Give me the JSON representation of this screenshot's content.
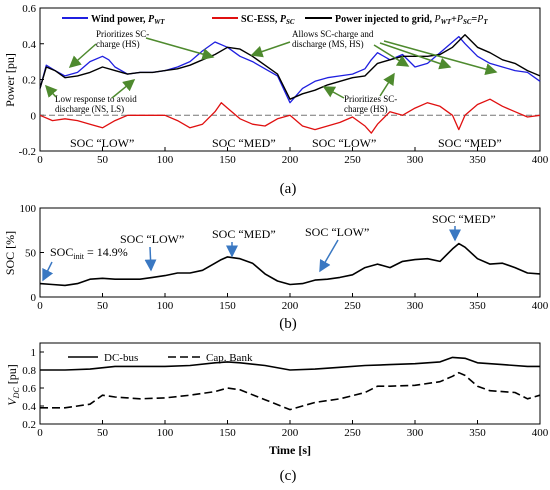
{
  "colors": {
    "wind": "#1f1fe0",
    "sc": "#e01010",
    "grid": "#000000",
    "annot_arrow": "#4e8a2e",
    "soc_arrow": "#3a78c2",
    "zero_line": "#777777"
  },
  "chart_data": [
    {
      "type": "line",
      "caption": "(a)",
      "ylabel": "Power [pu]",
      "xlim": [
        0,
        400
      ],
      "ylim": [
        -0.2,
        0.6
      ],
      "xticks": [
        0,
        50,
        100,
        150,
        200,
        250,
        300,
        350,
        400
      ],
      "yticks": [
        -0.2,
        0,
        0.2,
        0.4,
        0.6
      ],
      "ytick_labels": [
        "-0.2",
        "0",
        "0.2",
        "0.4",
        "0.6"
      ],
      "legend": [
        "Wind power, P_WT",
        "SC-ESS, P_SC",
        "Power injected to grid, P_WT+P_SC=P_T"
      ],
      "series": [
        {
          "name": "Wind power, P_WT",
          "x": [
            0,
            5,
            12,
            20,
            30,
            40,
            50,
            55,
            60,
            70,
            80,
            90,
            100,
            110,
            120,
            130,
            140,
            150,
            160,
            170,
            180,
            190,
            200,
            210,
            220,
            230,
            240,
            250,
            260,
            265,
            270,
            280,
            290,
            300,
            310,
            320,
            330,
            335,
            340,
            350,
            360,
            370,
            380,
            390,
            400
          ],
          "values": [
            0.15,
            0.28,
            0.25,
            0.22,
            0.24,
            0.3,
            0.33,
            0.31,
            0.27,
            0.23,
            0.24,
            0.24,
            0.25,
            0.27,
            0.3,
            0.36,
            0.41,
            0.38,
            0.33,
            0.3,
            0.26,
            0.22,
            0.07,
            0.15,
            0.19,
            0.21,
            0.22,
            0.23,
            0.26,
            0.31,
            0.35,
            0.31,
            0.34,
            0.27,
            0.29,
            0.35,
            0.41,
            0.44,
            0.4,
            0.33,
            0.29,
            0.27,
            0.25,
            0.24,
            0.19
          ]
        },
        {
          "name": "SC-ESS, P_SC",
          "x": [
            0,
            10,
            20,
            30,
            40,
            50,
            60,
            70,
            80,
            90,
            100,
            110,
            120,
            130,
            140,
            145,
            150,
            160,
            170,
            180,
            190,
            200,
            210,
            220,
            230,
            240,
            250,
            260,
            265,
            270,
            280,
            290,
            300,
            310,
            320,
            330,
            335,
            340,
            350,
            360,
            370,
            380,
            390,
            400
          ],
          "values": [
            0.0,
            -0.03,
            -0.02,
            -0.03,
            -0.05,
            -0.07,
            -0.03,
            0.0,
            0.0,
            0.0,
            0.0,
            -0.03,
            -0.07,
            -0.05,
            0.02,
            0.07,
            0.04,
            -0.02,
            -0.05,
            -0.06,
            -0.02,
            0.0,
            -0.06,
            -0.08,
            -0.06,
            -0.04,
            -0.01,
            -0.06,
            -0.1,
            -0.05,
            0.02,
            0.0,
            0.04,
            0.07,
            0.05,
            0.0,
            -0.08,
            0.0,
            0.06,
            0.09,
            0.05,
            0.02,
            -0.01,
            0.0
          ]
        },
        {
          "name": "Power injected to grid, P_WT+P_SC=P_T",
          "x": [
            0,
            5,
            12,
            20,
            30,
            40,
            50,
            60,
            70,
            80,
            90,
            100,
            110,
            120,
            130,
            140,
            150,
            160,
            170,
            180,
            190,
            200,
            210,
            220,
            230,
            240,
            250,
            260,
            270,
            280,
            290,
            300,
            310,
            320,
            330,
            340,
            350,
            360,
            370,
            380,
            390,
            400
          ],
          "values": [
            0.15,
            0.27,
            0.25,
            0.21,
            0.22,
            0.24,
            0.27,
            0.25,
            0.23,
            0.24,
            0.24,
            0.25,
            0.26,
            0.28,
            0.31,
            0.34,
            0.38,
            0.37,
            0.33,
            0.28,
            0.23,
            0.09,
            0.12,
            0.14,
            0.17,
            0.19,
            0.21,
            0.22,
            0.29,
            0.31,
            0.33,
            0.33,
            0.33,
            0.34,
            0.38,
            0.45,
            0.38,
            0.35,
            0.31,
            0.29,
            0.25,
            0.22
          ]
        }
      ],
      "annotations": {
        "prioritizes_hs": "Prioritizes SC-charge (HS)",
        "allows": "Allows SC-charge and discharge (MS, HS)",
        "low_response": "Low response to avoid discharge (NS, LS)",
        "prioritizes_hs2": "Prioritizes SC-charge (HS)",
        "soc_labels": [
          "SOC “LOW”",
          "SOC “MED”",
          "SOC “LOW”",
          "SOC “MED”"
        ]
      }
    },
    {
      "type": "line",
      "caption": "(b)",
      "ylabel": "SOC [%]",
      "xlim": [
        0,
        400
      ],
      "ylim": [
        0,
        100
      ],
      "xticks": [
        0,
        50,
        100,
        150,
        200,
        250,
        300,
        350,
        400
      ],
      "yticks": [
        0,
        50,
        100
      ],
      "series": [
        {
          "x": [
            0,
            10,
            20,
            30,
            40,
            50,
            60,
            70,
            80,
            90,
            100,
            110,
            120,
            130,
            140,
            145,
            150,
            160,
            170,
            180,
            190,
            200,
            210,
            220,
            230,
            240,
            250,
            260,
            270,
            280,
            290,
            300,
            310,
            320,
            330,
            335,
            340,
            350,
            360,
            370,
            380,
            390,
            400
          ],
          "values": [
            15,
            14,
            13,
            15,
            20,
            21,
            20,
            20,
            20,
            22,
            24,
            27,
            27,
            30,
            38,
            42,
            45,
            43,
            38,
            26,
            18,
            14,
            15,
            19,
            20,
            22,
            25,
            33,
            37,
            33,
            40,
            42,
            43,
            40,
            54,
            60,
            56,
            43,
            37,
            38,
            33,
            27,
            26
          ]
        }
      ],
      "annotations": {
        "soc_init": "SOC",
        "soc_init_sub": "init",
        "soc_init_val": " = 14.9%",
        "labels": [
          "SOC “LOW”",
          "SOC “MED”",
          "SOC “LOW”",
          "SOC “MED”"
        ]
      }
    },
    {
      "type": "line",
      "caption": "(c)",
      "ylabel": "V_DC [pu]",
      "xlabel": "Time [s]",
      "xlim": [
        0,
        400
      ],
      "ylim": [
        0.2,
        1.1
      ],
      "xticks": [
        0,
        50,
        100,
        150,
        200,
        250,
        300,
        350,
        400
      ],
      "yticks": [
        0.2,
        0.4,
        0.6,
        0.8,
        1
      ],
      "ytick_labels": [
        "0.2",
        "0.4",
        "0.6",
        "0.8",
        "1"
      ],
      "legend": [
        "DC-bus",
        "Cap. Bank"
      ],
      "series": [
        {
          "name": "DC-bus",
          "x": [
            0,
            20,
            40,
            60,
            80,
            100,
            120,
            140,
            150,
            160,
            180,
            200,
            220,
            240,
            260,
            280,
            300,
            320,
            330,
            340,
            350,
            370,
            390,
            400
          ],
          "values": [
            0.8,
            0.8,
            0.81,
            0.84,
            0.84,
            0.84,
            0.85,
            0.88,
            0.89,
            0.88,
            0.85,
            0.8,
            0.81,
            0.83,
            0.85,
            0.86,
            0.87,
            0.89,
            0.94,
            0.93,
            0.88,
            0.86,
            0.84,
            0.84
          ]
        },
        {
          "name": "Cap. Bank",
          "x": [
            0,
            20,
            40,
            50,
            60,
            80,
            100,
            120,
            140,
            150,
            160,
            180,
            200,
            210,
            220,
            240,
            260,
            270,
            280,
            300,
            320,
            330,
            335,
            340,
            350,
            360,
            380,
            390,
            400
          ],
          "values": [
            0.38,
            0.38,
            0.42,
            0.52,
            0.5,
            0.48,
            0.49,
            0.52,
            0.56,
            0.6,
            0.58,
            0.47,
            0.36,
            0.4,
            0.44,
            0.48,
            0.55,
            0.62,
            0.62,
            0.63,
            0.67,
            0.73,
            0.77,
            0.74,
            0.62,
            0.57,
            0.55,
            0.48,
            0.52
          ]
        }
      ]
    }
  ]
}
